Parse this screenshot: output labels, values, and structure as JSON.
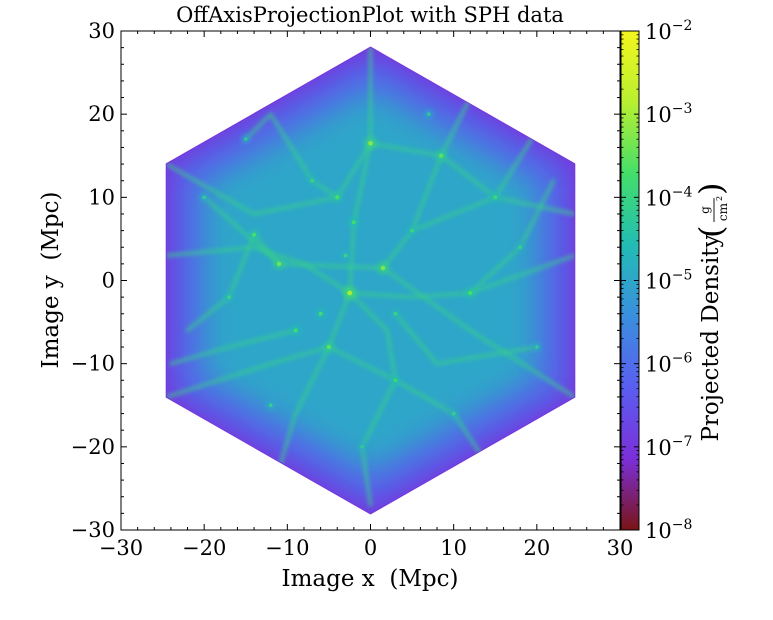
{
  "chart_data": {
    "type": "heatmap",
    "title": "OffAxisProjectionPlot with SPH data",
    "xlabel": "Image x  (Mpc)",
    "ylabel": "Image y  (Mpc)",
    "xlim": [
      -30,
      30
    ],
    "ylim": [
      -30,
      30
    ],
    "x_ticks": [
      -30,
      -20,
      -10,
      0,
      10,
      20,
      30
    ],
    "y_ticks": [
      -30,
      -20,
      -10,
      0,
      10,
      20,
      30
    ],
    "x_tick_labels": [
      "−30",
      "−20",
      "−10",
      "0",
      "10",
      "20",
      "30"
    ],
    "y_tick_labels": [
      "−30",
      "−20",
      "−10",
      "0",
      "10",
      "20",
      "30"
    ],
    "colorbar": {
      "label": "Projected Density",
      "unit_numerator": "g",
      "unit_denominator": "cm",
      "unit_denominator_power": "2",
      "scale": "log",
      "range": [
        1e-08,
        0.01
      ],
      "tick_base": "10",
      "tick_exponents": [
        "−8",
        "−7",
        "−6",
        "−5",
        "−4",
        "−3",
        "−2"
      ],
      "colormap_stops": [
        "#7a1414",
        "#7b2fd9",
        "#5a5ef0",
        "#3a8fde",
        "#22bcb4",
        "#44de6a",
        "#b8f030",
        "#f4f51e"
      ]
    },
    "region": {
      "shape": "hexagon",
      "vertices": [
        [
          0,
          28
        ],
        [
          24.5,
          14
        ],
        [
          24.5,
          -14
        ],
        [
          0,
          -28
        ],
        [
          -24.5,
          -14
        ],
        [
          -24.5,
          14
        ]
      ],
      "background_density": 1e-05,
      "edge_density": 1e-07
    },
    "bright_spots": [
      {
        "x": 0,
        "y": 16.5,
        "density": 0.0006
      },
      {
        "x": -2.5,
        "y": -1.5,
        "density": 0.001
      },
      {
        "x": 1.5,
        "y": 1.5,
        "density": 0.0005
      },
      {
        "x": -11,
        "y": 2,
        "density": 0.0004
      },
      {
        "x": 8.5,
        "y": 15,
        "density": 0.0003
      },
      {
        "x": -5,
        "y": -8,
        "density": 0.0003
      },
      {
        "x": -4,
        "y": 10,
        "density": 0.0002
      },
      {
        "x": -14,
        "y": 5.5,
        "density": 0.0002
      },
      {
        "x": 12,
        "y": -1.5,
        "density": 0.0002
      },
      {
        "x": -6,
        "y": -4,
        "density": 0.00015
      },
      {
        "x": -9,
        "y": -6,
        "density": 0.00015
      },
      {
        "x": -2,
        "y": 7,
        "density": 0.00015
      },
      {
        "x": 15,
        "y": 10,
        "density": 0.00012
      },
      {
        "x": 3,
        "y": -12,
        "density": 0.00012
      },
      {
        "x": -17,
        "y": -2,
        "density": 0.0001
      },
      {
        "x": 5,
        "y": 6,
        "density": 0.0001
      },
      {
        "x": -7,
        "y": 12,
        "density": 0.0001
      },
      {
        "x": 10,
        "y": -16,
        "density": 8e-05
      },
      {
        "x": -12,
        "y": -15,
        "density": 8e-05
      },
      {
        "x": 18,
        "y": 4,
        "density": 8e-05
      },
      {
        "x": -1,
        "y": -20,
        "density": 6e-05
      },
      {
        "x": 20,
        "y": -8,
        "density": 6e-05
      },
      {
        "x": -20,
        "y": 10,
        "density": 6e-05
      },
      {
        "x": 7,
        "y": 20,
        "density": 6e-05
      },
      {
        "x": -15,
        "y": 17,
        "density": 5e-05
      },
      {
        "x": 14,
        "y": -22,
        "density": 5e-05
      },
      {
        "x": 3,
        "y": -4,
        "density": 0.0001
      },
      {
        "x": -3,
        "y": 3,
        "density": 0.0001
      }
    ],
    "filaments": [
      [
        [
          -24.5,
          3
        ],
        [
          -14,
          4
        ],
        [
          -8,
          2
        ],
        [
          -2.5,
          -1.5
        ],
        [
          5,
          -2
        ],
        [
          12,
          -1.5
        ],
        [
          24.5,
          3
        ]
      ],
      [
        [
          0,
          28
        ],
        [
          0,
          16.5
        ],
        [
          -2,
          7
        ],
        [
          -2.5,
          -1.5
        ],
        [
          -5,
          -8
        ],
        [
          -9,
          -16
        ],
        [
          -12,
          -26
        ]
      ],
      [
        [
          -24.5,
          14
        ],
        [
          -14,
          8
        ],
        [
          -4,
          10
        ],
        [
          0,
          16.5
        ],
        [
          8.5,
          15
        ],
        [
          15,
          10
        ],
        [
          24.5,
          8
        ]
      ],
      [
        [
          24.5,
          -14
        ],
        [
          12,
          -6
        ],
        [
          1.5,
          1.5
        ],
        [
          -11,
          2
        ],
        [
          -20,
          10
        ]
      ],
      [
        [
          -24.5,
          -14
        ],
        [
          -12,
          -10
        ],
        [
          -5,
          -8
        ],
        [
          3,
          -12
        ],
        [
          10,
          -16
        ],
        [
          14,
          -22
        ]
      ],
      [
        [
          1.5,
          1.5
        ],
        [
          5,
          6
        ],
        [
          8.5,
          15
        ],
        [
          12,
          22
        ]
      ],
      [
        [
          -2.5,
          -1.5
        ],
        [
          2,
          -6
        ],
        [
          3,
          -12
        ],
        [
          -1,
          -20
        ],
        [
          0,
          -27
        ]
      ],
      [
        [
          -11,
          2
        ],
        [
          -14,
          5.5
        ],
        [
          -17,
          -2
        ],
        [
          -22,
          -6
        ]
      ],
      [
        [
          12,
          -1.5
        ],
        [
          18,
          4
        ],
        [
          22,
          12
        ]
      ],
      [
        [
          -4,
          10
        ],
        [
          -7,
          12
        ],
        [
          -12,
          20
        ],
        [
          -15,
          17
        ]
      ],
      [
        [
          5,
          6
        ],
        [
          15,
          10
        ],
        [
          20,
          18
        ]
      ],
      [
        [
          -9,
          -6
        ],
        [
          -17,
          -8
        ],
        [
          -24,
          -10
        ]
      ],
      [
        [
          3,
          -4
        ],
        [
          8,
          -10
        ],
        [
          20,
          -8
        ]
      ]
    ]
  }
}
